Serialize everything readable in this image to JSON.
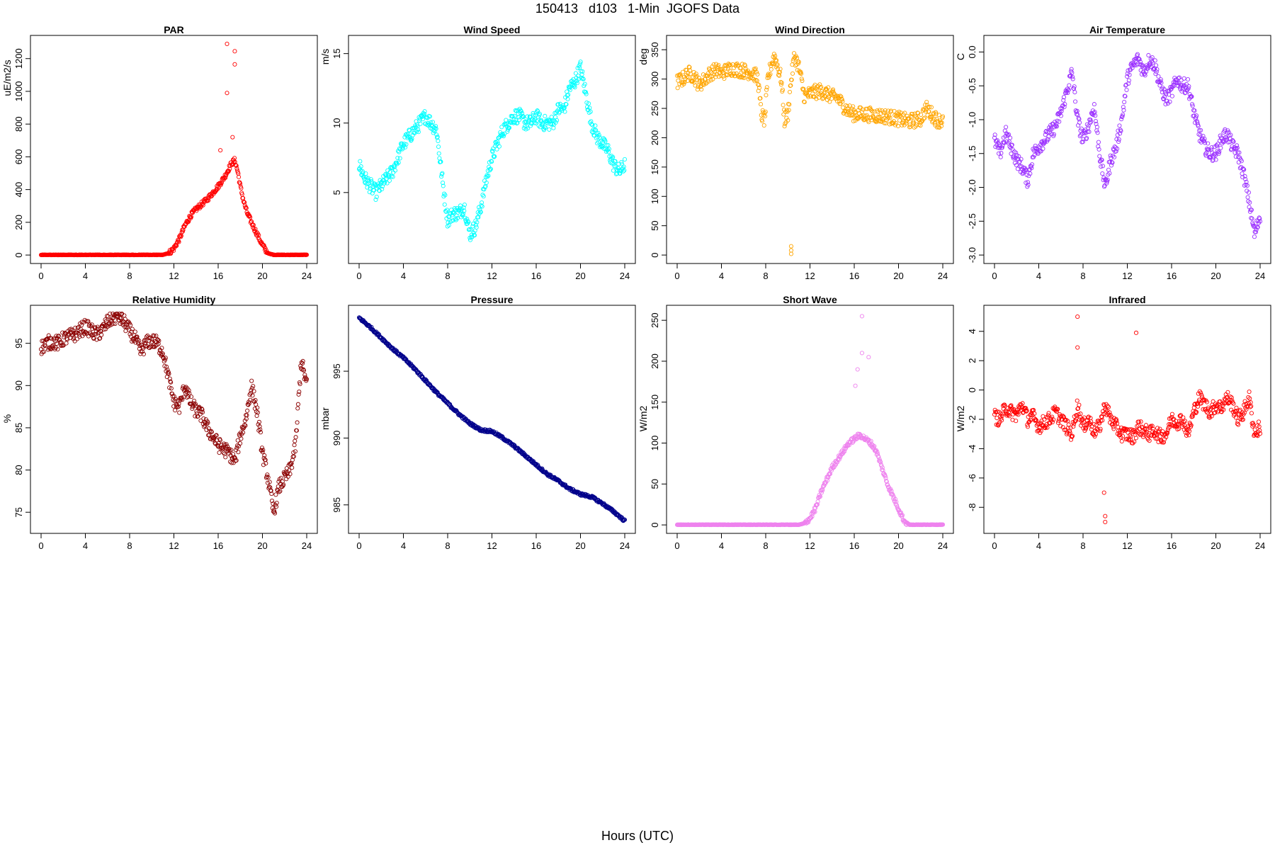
{
  "title": "150413   d103   1-Min  JGOFS Data",
  "global_xlabel": "Hours (UTC)",
  "chart_data": [
    {
      "type": "scatter",
      "title": "PAR",
      "ylabel": "uE/m2/s",
      "color": "#ff0000",
      "xlim": [
        0,
        24
      ],
      "ylim": [
        0,
        1290
      ],
      "xticks": [
        0,
        4,
        8,
        12,
        16,
        20,
        24
      ],
      "yticks": [
        0,
        200,
        400,
        600,
        800,
        1000,
        1200
      ],
      "x": [
        0,
        1,
        2,
        3,
        4,
        5,
        6,
        7,
        8,
        9,
        10,
        11,
        11.5,
        12,
        12.5,
        13,
        13.5,
        14,
        14.5,
        15,
        15.5,
        16,
        16.3,
        16.6,
        16.9,
        17.2,
        17.5,
        17.8,
        18,
        18.3,
        18.6,
        19,
        19.5,
        20,
        20.5,
        21,
        22,
        23,
        24
      ],
      "y": [
        0,
        0,
        0,
        0,
        0,
        0,
        0,
        0,
        0,
        0,
        0,
        0,
        10,
        40,
        100,
        180,
        240,
        280,
        310,
        340,
        380,
        420,
        450,
        480,
        520,
        560,
        580,
        500,
        420,
        330,
        260,
        200,
        130,
        60,
        10,
        0,
        0,
        0,
        0
      ],
      "outliers": [
        [
          16.8,
          1290
        ],
        [
          16.8,
          990
        ],
        [
          17.5,
          1245
        ],
        [
          17.5,
          1165
        ],
        [
          17.3,
          720
        ],
        [
          16.2,
          640
        ]
      ]
    },
    {
      "type": "scatter",
      "title": "Wind Speed",
      "ylabel": "m/s",
      "color": "#00ffff",
      "xlim": [
        0,
        24
      ],
      "ylim": [
        0.5,
        15.7
      ],
      "xticks": [
        0,
        4,
        8,
        12,
        16,
        20,
        24
      ],
      "yticks": [
        5,
        10,
        15
      ],
      "x": [
        0,
        0.5,
        1,
        1.5,
        2,
        2.5,
        3,
        3.5,
        4,
        4.5,
        5,
        5.5,
        6,
        6.5,
        7,
        7.5,
        8,
        8.5,
        9,
        9.5,
        10,
        10.5,
        11,
        11.5,
        12,
        12.5,
        13,
        13.5,
        14,
        14.5,
        15,
        15.5,
        16,
        16.5,
        17,
        17.5,
        18,
        18.5,
        19,
        19.5,
        20,
        20.5,
        21,
        21.5,
        22,
        22.5,
        23,
        23.5,
        24
      ],
      "y": [
        7,
        6,
        5.5,
        5,
        5.5,
        6,
        6.5,
        7.5,
        8.5,
        9,
        9.5,
        10,
        10.5,
        10,
        9.5,
        6,
        3,
        3.5,
        3.5,
        4,
        2,
        2.5,
        4,
        6,
        7.5,
        8.5,
        9.5,
        10,
        10.5,
        10.5,
        10,
        10,
        10.5,
        10,
        10,
        10,
        11,
        11,
        12.5,
        13,
        14,
        12,
        10,
        9,
        8.5,
        8,
        7,
        6.5,
        7
      ]
    },
    {
      "type": "scatter",
      "title": "Wind Direction",
      "ylabel": "deg",
      "color": "#ffa500",
      "xlim": [
        0,
        24
      ],
      "ylim": [
        0,
        360
      ],
      "xticks": [
        0,
        4,
        8,
        12,
        16,
        20,
        24
      ],
      "yticks": [
        0,
        50,
        100,
        150,
        200,
        250,
        300,
        350
      ],
      "x": [
        0,
        0.5,
        1,
        1.5,
        2,
        2.5,
        3,
        3.5,
        4,
        4.5,
        5,
        5.5,
        6,
        6.5,
        7,
        7.3,
        7.6,
        7.9,
        8.2,
        8.5,
        8.8,
        9.1,
        9.4,
        9.7,
        10,
        10.3,
        10.6,
        11,
        11.5,
        12,
        12.5,
        13,
        13.5,
        14,
        14.5,
        15,
        15.5,
        16,
        17,
        18,
        19,
        20,
        21,
        22,
        22.5,
        23,
        23.5,
        24
      ],
      "y": [
        295,
        300,
        310,
        305,
        290,
        300,
        310,
        315,
        310,
        315,
        318,
        316,
        314,
        312,
        308,
        300,
        240,
        230,
        300,
        325,
        340,
        320,
        300,
        230,
        240,
        300,
        340,
        320,
        270,
        275,
        278,
        280,
        275,
        270,
        268,
        255,
        245,
        240,
        240,
        238,
        236,
        232,
        228,
        232,
        250,
        240,
        230,
        228
      ],
      "outliers": [
        [
          10.3,
          15
        ],
        [
          10.3,
          8
        ],
        [
          10.3,
          2
        ]
      ]
    },
    {
      "type": "scatter",
      "title": "Air Temperature",
      "ylabel": "C",
      "color": "#9b30ff",
      "xlim": [
        0,
        24
      ],
      "ylim": [
        -3.0,
        0.12
      ],
      "xticks": [
        0,
        4,
        8,
        12,
        16,
        20,
        24
      ],
      "yticks": [
        -3.0,
        -2.5,
        -2.0,
        -1.5,
        -1.0,
        -0.5,
        0.0
      ],
      "x": [
        0,
        0.5,
        1,
        1.5,
        2,
        2.5,
        3,
        3.5,
        4,
        4.5,
        5,
        5.5,
        6,
        6.5,
        7,
        7.5,
        8,
        8.5,
        9,
        9.5,
        10,
        10.5,
        11,
        11.5,
        12,
        12.5,
        13,
        13.5,
        14,
        14.5,
        15,
        15.5,
        16,
        16.5,
        17,
        17.5,
        18,
        18.5,
        19,
        19.5,
        20,
        20.5,
        21,
        21.5,
        22,
        22.5,
        23,
        23.5,
        24
      ],
      "y": [
        -1.3,
        -1.5,
        -1.2,
        -1.4,
        -1.6,
        -1.7,
        -1.9,
        -1.5,
        -1.4,
        -1.3,
        -1.2,
        -1.1,
        -0.9,
        -0.6,
        -0.3,
        -1.0,
        -1.3,
        -1.1,
        -0.8,
        -1.5,
        -2.0,
        -1.6,
        -1.4,
        -1.0,
        -0.4,
        -0.2,
        -0.1,
        -0.3,
        -0.1,
        -0.2,
        -0.5,
        -0.7,
        -0.6,
        -0.4,
        -0.5,
        -0.5,
        -0.9,
        -1.2,
        -1.4,
        -1.5,
        -1.5,
        -1.3,
        -1.2,
        -1.4,
        -1.5,
        -1.8,
        -2.2,
        -2.7,
        -2.4
      ]
    },
    {
      "type": "scatter",
      "title": "Relative Humidity",
      "ylabel": "%",
      "color": "#8b0000",
      "xlim": [
        0,
        24
      ],
      "ylim": [
        73.5,
        98.5
      ],
      "xticks": [
        0,
        4,
        8,
        12,
        16,
        20,
        24
      ],
      "yticks": [
        75,
        80,
        85,
        90,
        95
      ],
      "x": [
        0,
        0.5,
        1,
        1.5,
        2,
        2.5,
        3,
        3.5,
        4,
        4.5,
        5,
        5.5,
        6,
        6.5,
        7,
        7.5,
        8,
        8.5,
        9,
        9.5,
        10,
        10.5,
        11,
        11.5,
        12,
        12.5,
        13,
        13.5,
        14,
        14.5,
        15,
        15.5,
        16,
        16.5,
        17,
        17.5,
        18,
        18.5,
        19,
        19.5,
        20,
        20.5,
        21,
        21.5,
        22,
        22.5,
        23,
        23.5,
        24
      ],
      "y": [
        94.5,
        95,
        95.2,
        95,
        95.5,
        95.8,
        96,
        96.5,
        97,
        96.5,
        96,
        96.5,
        97.5,
        98,
        98.2,
        97.5,
        96.5,
        95.5,
        94,
        95,
        95.3,
        95,
        94,
        91,
        88,
        87.5,
        90,
        88,
        87,
        86.5,
        85,
        84,
        83,
        82.5,
        82,
        81,
        84,
        86,
        90,
        87,
        82,
        79,
        75,
        78,
        79,
        80,
        83,
        93,
        90
      ]
    },
    {
      "type": "scatter",
      "title": "Pressure",
      "ylabel": "mbar",
      "color": "#00008b",
      "xlim": [
        0,
        24
      ],
      "ylim": [
        983.5,
        999.3
      ],
      "xticks": [
        0,
        4,
        8,
        12,
        16,
        20,
        24
      ],
      "yticks": [
        985,
        990,
        995
      ],
      "x": [
        0,
        1,
        2,
        3,
        4,
        5,
        6,
        7,
        8,
        9,
        10,
        11,
        12,
        13,
        14,
        15,
        16,
        17,
        18,
        19,
        20,
        21,
        22,
        23,
        24
      ],
      "y": [
        999,
        998.3,
        997.5,
        996.7,
        996,
        995.2,
        994.3,
        993.4,
        992.6,
        991.8,
        991.1,
        990.6,
        990.5,
        990,
        989.4,
        988.7,
        988,
        987.3,
        986.8,
        986.2,
        985.8,
        985.6,
        985.1,
        984.5,
        983.8
      ]
    },
    {
      "type": "scatter",
      "title": "Short Wave",
      "ylabel": "W/m2",
      "color": "#ee82ee",
      "xlim": [
        0,
        24
      ],
      "ylim": [
        0,
        258
      ],
      "xticks": [
        0,
        4,
        8,
        12,
        16,
        20,
        24
      ],
      "yticks": [
        0,
        50,
        100,
        150,
        200,
        250
      ],
      "x": [
        0,
        1,
        2,
        3,
        4,
        5,
        6,
        7,
        8,
        9,
        10,
        11,
        11.5,
        12,
        12.5,
        13,
        13.5,
        14,
        14.5,
        15,
        15.5,
        16,
        16.5,
        17,
        17.5,
        18,
        18.5,
        19,
        19.5,
        20,
        20.5,
        21,
        22,
        23,
        24
      ],
      "y": [
        0,
        0,
        0,
        0,
        0,
        0,
        0,
        0,
        0,
        0,
        0,
        0,
        2,
        8,
        20,
        40,
        55,
        70,
        80,
        90,
        100,
        105,
        110,
        105,
        100,
        90,
        70,
        50,
        35,
        20,
        5,
        0,
        0,
        0,
        0
      ],
      "outliers": [
        [
          16.7,
          255
        ],
        [
          16.7,
          210
        ],
        [
          17.3,
          205
        ],
        [
          16.3,
          190
        ],
        [
          16.1,
          170
        ]
      ]
    },
    {
      "type": "scatter",
      "title": "Infrared",
      "ylabel": "W/m2",
      "color": "#ff0000",
      "xlim": [
        0,
        24
      ],
      "ylim": [
        -9.2,
        5.2
      ],
      "xticks": [
        0,
        4,
        8,
        12,
        16,
        20,
        24
      ],
      "yticks": [
        -8,
        -6,
        -4,
        -2,
        0,
        2,
        4
      ],
      "x": [
        0,
        0.5,
        1,
        1.5,
        2,
        2.5,
        3,
        3.5,
        4,
        4.5,
        5,
        5.5,
        6,
        6.5,
        7,
        7.5,
        8,
        8.5,
        9,
        9.5,
        10,
        10.5,
        11,
        11.5,
        12,
        12.5,
        13,
        13.5,
        14,
        14.5,
        15,
        15.5,
        16,
        16.5,
        17,
        17.5,
        18,
        18.5,
        19,
        19.5,
        20,
        20.5,
        21,
        21.5,
        22,
        22.5,
        23,
        23.5,
        24
      ],
      "y": [
        -1.8,
        -2,
        -1.2,
        -1.5,
        -1.7,
        -1,
        -2,
        -1.8,
        -2.5,
        -2.2,
        -2,
        -1.5,
        -2,
        -2.5,
        -3,
        -1,
        -2.5,
        -2,
        -2.8,
        -2.5,
        -1,
        -2,
        -2.5,
        -3,
        -3,
        -3.2,
        -2.5,
        -2.8,
        -3,
        -2.8,
        -3.2,
        -3,
        -2,
        -2.2,
        -2,
        -3,
        -1.5,
        -0.5,
        -1,
        -1.5,
        -1,
        -1.2,
        -0.5,
        -1,
        -2,
        -1.5,
        -0.5,
        -3,
        -2.5
      ],
      "outliers": [
        [
          7.5,
          5
        ],
        [
          7.5,
          2.9
        ],
        [
          12.8,
          3.9
        ],
        [
          10,
          -8.6
        ],
        [
          10,
          -9.0
        ],
        [
          9.9,
          -7
        ]
      ]
    }
  ]
}
